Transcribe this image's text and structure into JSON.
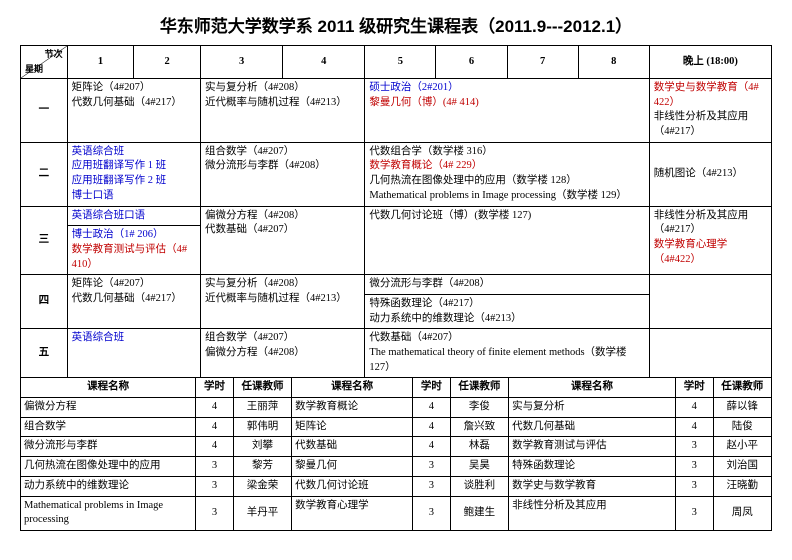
{
  "title": "华东师范大学数学系 2011 级研究生课程表（2011.9---2012.1）",
  "header": {
    "corner_top": "节次",
    "corner_bottom": "星期",
    "periods": [
      "1",
      "2",
      "3",
      "4",
      "5",
      "6",
      "7",
      "8"
    ],
    "evening": "晚上 (18:00)"
  },
  "days": {
    "mon": "一",
    "tue": "二",
    "wed": "三",
    "thu": "四",
    "fri": "五"
  },
  "cells": {
    "mon12": "矩阵论（4#207）\n代数几何基础（4#217）",
    "mon34": "实与复分析（4#208）\n近代概率与随机过程（4#213）",
    "mon56a": "硕士政治（2#201）",
    "mon56b": "黎曼几何（博）(4# 414)",
    "mon_evening_a": "数学史与数学教育（4# 422）",
    "mon_evening_b": "非线性分析及其应用（4#217）",
    "tue12_a": "英语综合班",
    "tue12_b": "应用班翻译写作 1 班",
    "tue12_c": "应用班翻译写作 2 班",
    "tue12_d": "博士口语",
    "tue34": "组合数学（4#207）\n微分流形与李群（4#208）",
    "tue56_a": "代数组合学（数学楼 316）",
    "tue56_b": "数学教育概论（4# 229）",
    "tue56_c": "几何热流在图像处理中的应用（数学楼 128）",
    "tue56_d": "Mathematical problems in Image processing（数学楼 129）",
    "tue_evening": "随机图论（4#213）",
    "wed12_a": "英语综合班口语",
    "wed12_b": "博士政治（1# 206）",
    "wed12_c": "数学教育测试与评估（4# 410）",
    "wed34": "偏微分方程（4#208）\n代数基础（4#207）",
    "wed56": "代数几何讨论班（博）(数学楼 127)",
    "wed_evening_a": "非线性分析及其应用（4#217）",
    "wed_evening_b": "数学教育心理学（4#422）",
    "thu12": "矩阵论（4#207）\n代数几何基础（4#217）",
    "thu34": "实与复分析（4#208）\n近代概率与随机过程（4#213）",
    "thu56_top": "微分流形与李群（4#208）",
    "thu56_bot": "特殊函数理论（4#217）\n动力系统中的维数理论（4#213）",
    "fri12": "英语综合班",
    "fri34": "组合数学（4#207）\n偏微分方程（4#208）",
    "fri56": "代数基础（4#207）\nThe mathematical theory of finite element methods（数学楼 127）"
  },
  "courselist_header": {
    "name": "课程名称",
    "hours": "学时",
    "teacher": "任课教师"
  },
  "courses": [
    [
      {
        "name": "偏微分方程",
        "hours": "4",
        "teacher": "王丽萍"
      },
      {
        "name": "数学教育概论",
        "hours": "4",
        "teacher": "李俊"
      },
      {
        "name": "实与复分析",
        "hours": "4",
        "teacher": "薛以锋"
      }
    ],
    [
      {
        "name": "组合数学",
        "hours": "4",
        "teacher": "郭伟明"
      },
      {
        "name": "矩阵论",
        "hours": "4",
        "teacher": "詹兴致"
      },
      {
        "name": "代数几何基础",
        "hours": "4",
        "teacher": "陆俊"
      }
    ],
    [
      {
        "name": "微分流形与李群",
        "hours": "4",
        "teacher": "刘攀"
      },
      {
        "name": "代数基础",
        "hours": "4",
        "teacher": "林磊"
      },
      {
        "name": "数学教育测试与评估",
        "hours": "3",
        "teacher": "赵小平"
      }
    ],
    [
      {
        "name": "几何热流在图像处理中的应用",
        "hours": "3",
        "teacher": "黎芳"
      },
      {
        "name": "黎曼几何",
        "hours": "3",
        "teacher": "吴昊"
      },
      {
        "name": "特殊函数理论",
        "hours": "3",
        "teacher": "刘治国"
      }
    ],
    [
      {
        "name": "动力系统中的维数理论",
        "hours": "3",
        "teacher": "梁金荣"
      },
      {
        "name": "代数几何讨论班",
        "hours": "3",
        "teacher": "谈胜利"
      },
      {
        "name": "数学史与数学教育",
        "hours": "3",
        "teacher": "汪晓勤"
      }
    ],
    [
      {
        "name": "Mathematical problems in Image processing",
        "hours": "3",
        "teacher": "羊丹平"
      },
      {
        "name": "数学教育心理学",
        "hours": "3",
        "teacher": "鲍建生"
      },
      {
        "name": "非线性分析及其应用",
        "hours": "3",
        "teacher": "周凤"
      }
    ]
  ]
}
